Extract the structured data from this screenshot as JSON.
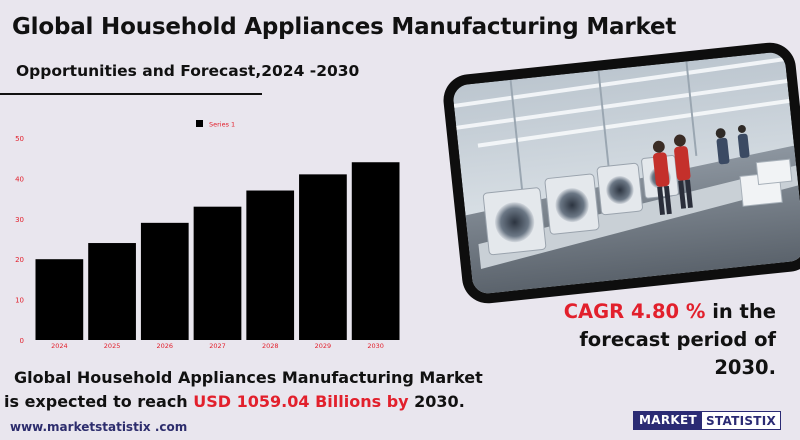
{
  "header": {
    "title": "Global Household Appliances Manufacturing Market",
    "subtitle": "Opportunities and Forecast,2024 -2030"
  },
  "colors": {
    "background": "#e9e6ee",
    "bar": "#000000",
    "accent_red": "#e2202c",
    "axis_text": "#e2202c",
    "logo_blue": "#2b2b74"
  },
  "chart_data": {
    "type": "bar",
    "categories": [
      "2024",
      "2025",
      "2026",
      "2027",
      "2028",
      "2029",
      "2030"
    ],
    "series": [
      {
        "name": "Series 1",
        "values": [
          20,
          24,
          29,
          33,
          37,
          41,
          44
        ]
      }
    ],
    "ylim": [
      0,
      50
    ],
    "yticks": [
      0,
      10,
      20,
      30,
      40,
      50
    ],
    "grid": false,
    "legend_position": "top-center"
  },
  "cagr": {
    "value_text": "CAGR 4.80 %",
    "suffix": "in the",
    "line2": "forecast period of 2030."
  },
  "statement": {
    "line1": "Global Household Appliances Manufacturing Market",
    "line2_prefix": "is expected to reach",
    "amount": "USD 1059.04  Billions by",
    "year": "2030."
  },
  "footer": {
    "url": "www.marketstatistix .com",
    "logo_part1": "MARKET",
    "logo_part2": "STATISTIX"
  },
  "photo": {
    "icon": "factory-washing-machine-assembly-line-photo"
  }
}
